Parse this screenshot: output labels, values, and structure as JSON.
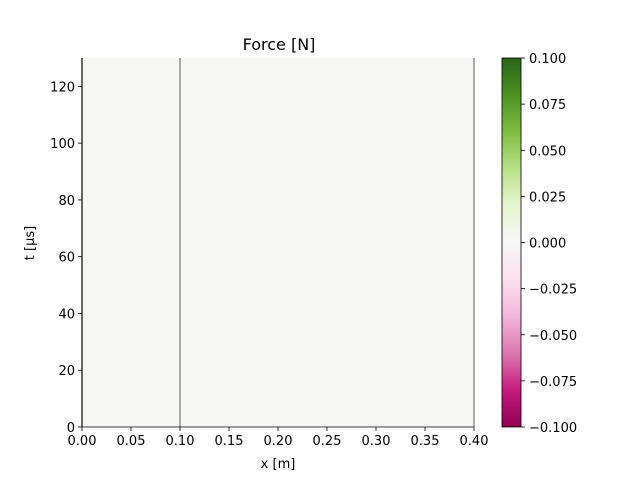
{
  "chart_data": {
    "type": "heatmap",
    "title": "Force [N]",
    "xlabel": "x [m]",
    "ylabel": "t [μs]",
    "xlim": [
      0.0,
      0.4
    ],
    "ylim": [
      0,
      130
    ],
    "x_ticks": [
      "0.00",
      "0.05",
      "0.10",
      "0.15",
      "0.20",
      "0.25",
      "0.30",
      "0.35",
      "0.40"
    ],
    "x_tick_values": [
      0.0,
      0.05,
      0.1,
      0.15,
      0.2,
      0.25,
      0.3,
      0.35,
      0.4
    ],
    "y_ticks": [
      "0",
      "20",
      "40",
      "60",
      "80",
      "100",
      "120"
    ],
    "y_tick_values": [
      0,
      20,
      40,
      60,
      80,
      100,
      120
    ],
    "field_value": 0.0,
    "field_color": "#f6f6f5",
    "boundary_lines_x": [
      0.0,
      0.1,
      0.4
    ],
    "boundary_line_color": "#aaaaaa",
    "colormap": "PiYG",
    "colorbar": {
      "vmin": -0.1,
      "vmax": 0.1,
      "ticks": [
        "−0.100",
        "−0.075",
        "−0.050",
        "−0.025",
        "0.000",
        "0.025",
        "0.050",
        "0.075",
        "0.100"
      ],
      "tick_values": [
        -0.1,
        -0.075,
        -0.05,
        -0.025,
        0.0,
        0.025,
        0.05,
        0.075,
        0.1
      ],
      "stops": [
        "#8e0152",
        "#c51b7d",
        "#de77ae",
        "#f1b6da",
        "#fde0ef",
        "#f7f7f7",
        "#e6f5d0",
        "#b8e186",
        "#7fbc41",
        "#4d9221",
        "#276419"
      ]
    }
  }
}
